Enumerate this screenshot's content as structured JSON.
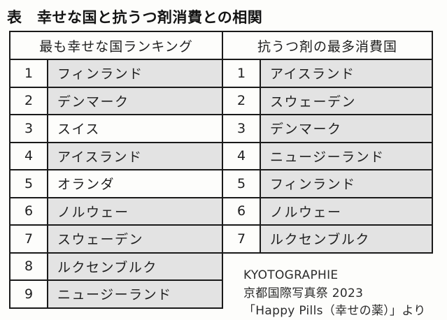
{
  "page": {
    "title": "表　幸せな国と抗うつ剤消費との相関"
  },
  "table": {
    "left": {
      "header": "最も幸せな国ランキング",
      "rows": [
        {
          "rank": "1",
          "country": "フィンランド",
          "highlight": true
        },
        {
          "rank": "2",
          "country": "デンマーク",
          "highlight": true
        },
        {
          "rank": "3",
          "country": "スイス",
          "highlight": false
        },
        {
          "rank": "4",
          "country": "アイスランド",
          "highlight": true
        },
        {
          "rank": "5",
          "country": "オランダ",
          "highlight": false
        },
        {
          "rank": "6",
          "country": "ノルウェー",
          "highlight": true
        },
        {
          "rank": "7",
          "country": "スウェーデン",
          "highlight": true
        },
        {
          "rank": "8",
          "country": "ルクセンブルク",
          "highlight": true
        },
        {
          "rank": "9",
          "country": "ニュージーランド",
          "highlight": true
        }
      ]
    },
    "right": {
      "header": "抗うつ剤の最多消費国",
      "rows": [
        {
          "rank": "1",
          "country": "アイスランド",
          "highlight": true
        },
        {
          "rank": "2",
          "country": "スウェーデン",
          "highlight": true
        },
        {
          "rank": "3",
          "country": "デンマーク",
          "highlight": true
        },
        {
          "rank": "4",
          "country": "ニュージーランド",
          "highlight": true
        },
        {
          "rank": "5",
          "country": "フィンランド",
          "highlight": true
        },
        {
          "rank": "6",
          "country": "ノルウェー",
          "highlight": true
        },
        {
          "rank": "7",
          "country": "ルクセンブルク",
          "highlight": true
        }
      ]
    }
  },
  "source": {
    "lines": [
      "KYOTOGRAPHIE",
      "京都国際写真祭 2023",
      "「Happy Pills（幸せの薬）」より"
    ]
  },
  "colors": {
    "highlight": "#e3e3e3",
    "border": "#1a1a1a",
    "background": "#fdfdfb",
    "text": "#1f1f1f"
  }
}
